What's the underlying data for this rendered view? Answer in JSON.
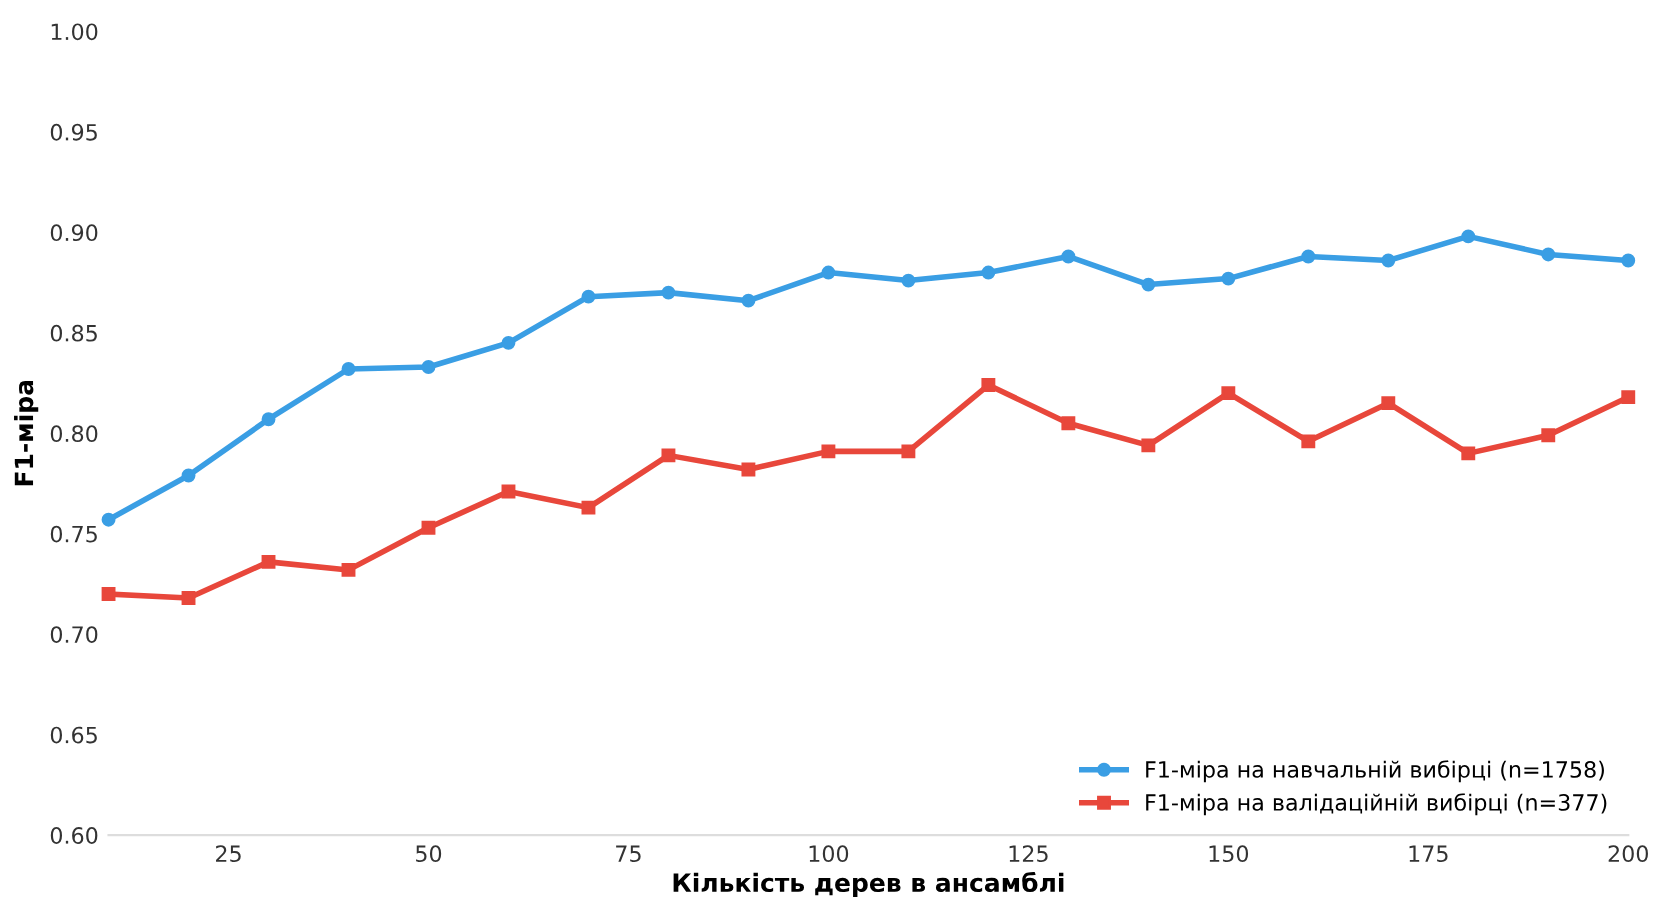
{
  "chart_data": {
    "type": "line",
    "xlabel": "Кількість дерев в ансамблі",
    "ylabel": "F1-міра",
    "x": [
      10,
      20,
      30,
      40,
      50,
      60,
      70,
      80,
      90,
      100,
      110,
      120,
      130,
      140,
      150,
      160,
      170,
      180,
      190,
      200
    ],
    "series": [
      {
        "name": "F1-міра на навчальній вибірці (n=1758)",
        "color": "#3a9ee4",
        "marker": "circle",
        "values": [
          0.757,
          0.779,
          0.807,
          0.832,
          0.833,
          0.845,
          0.868,
          0.87,
          0.866,
          0.88,
          0.876,
          0.88,
          0.888,
          0.874,
          0.877,
          0.888,
          0.886,
          0.898,
          0.889,
          0.886
        ]
      },
      {
        "name": "F1-міра на валідаційній вибірці (n=377)",
        "color": "#e8473b",
        "marker": "square",
        "values": [
          0.72,
          0.718,
          0.736,
          0.732,
          0.753,
          0.771,
          0.763,
          0.789,
          0.782,
          0.791,
          0.791,
          0.824,
          0.805,
          0.794,
          0.82,
          0.796,
          0.815,
          0.79,
          0.799,
          0.818
        ]
      }
    ],
    "xlim": [
      10,
      200
    ],
    "xticks": [
      25,
      50,
      75,
      100,
      125,
      150,
      175,
      200
    ],
    "ylim": [
      0.6,
      1.0
    ],
    "yticks": [
      {
        "value": 0.6,
        "label": "0.60"
      },
      {
        "value": 0.65,
        "label": "0.65"
      },
      {
        "value": 0.7,
        "label": "0.70"
      },
      {
        "value": 0.75,
        "label": "0.75"
      },
      {
        "value": 0.8,
        "label": "0.80"
      },
      {
        "value": 0.85,
        "label": "0.85"
      },
      {
        "value": 0.9,
        "label": "0.90"
      },
      {
        "value": 0.95,
        "label": "0.95"
      },
      {
        "value": 1.0,
        "label": "1.00"
      }
    ],
    "grid": false,
    "legend": "bottom right",
    "line_style": "solid"
  }
}
